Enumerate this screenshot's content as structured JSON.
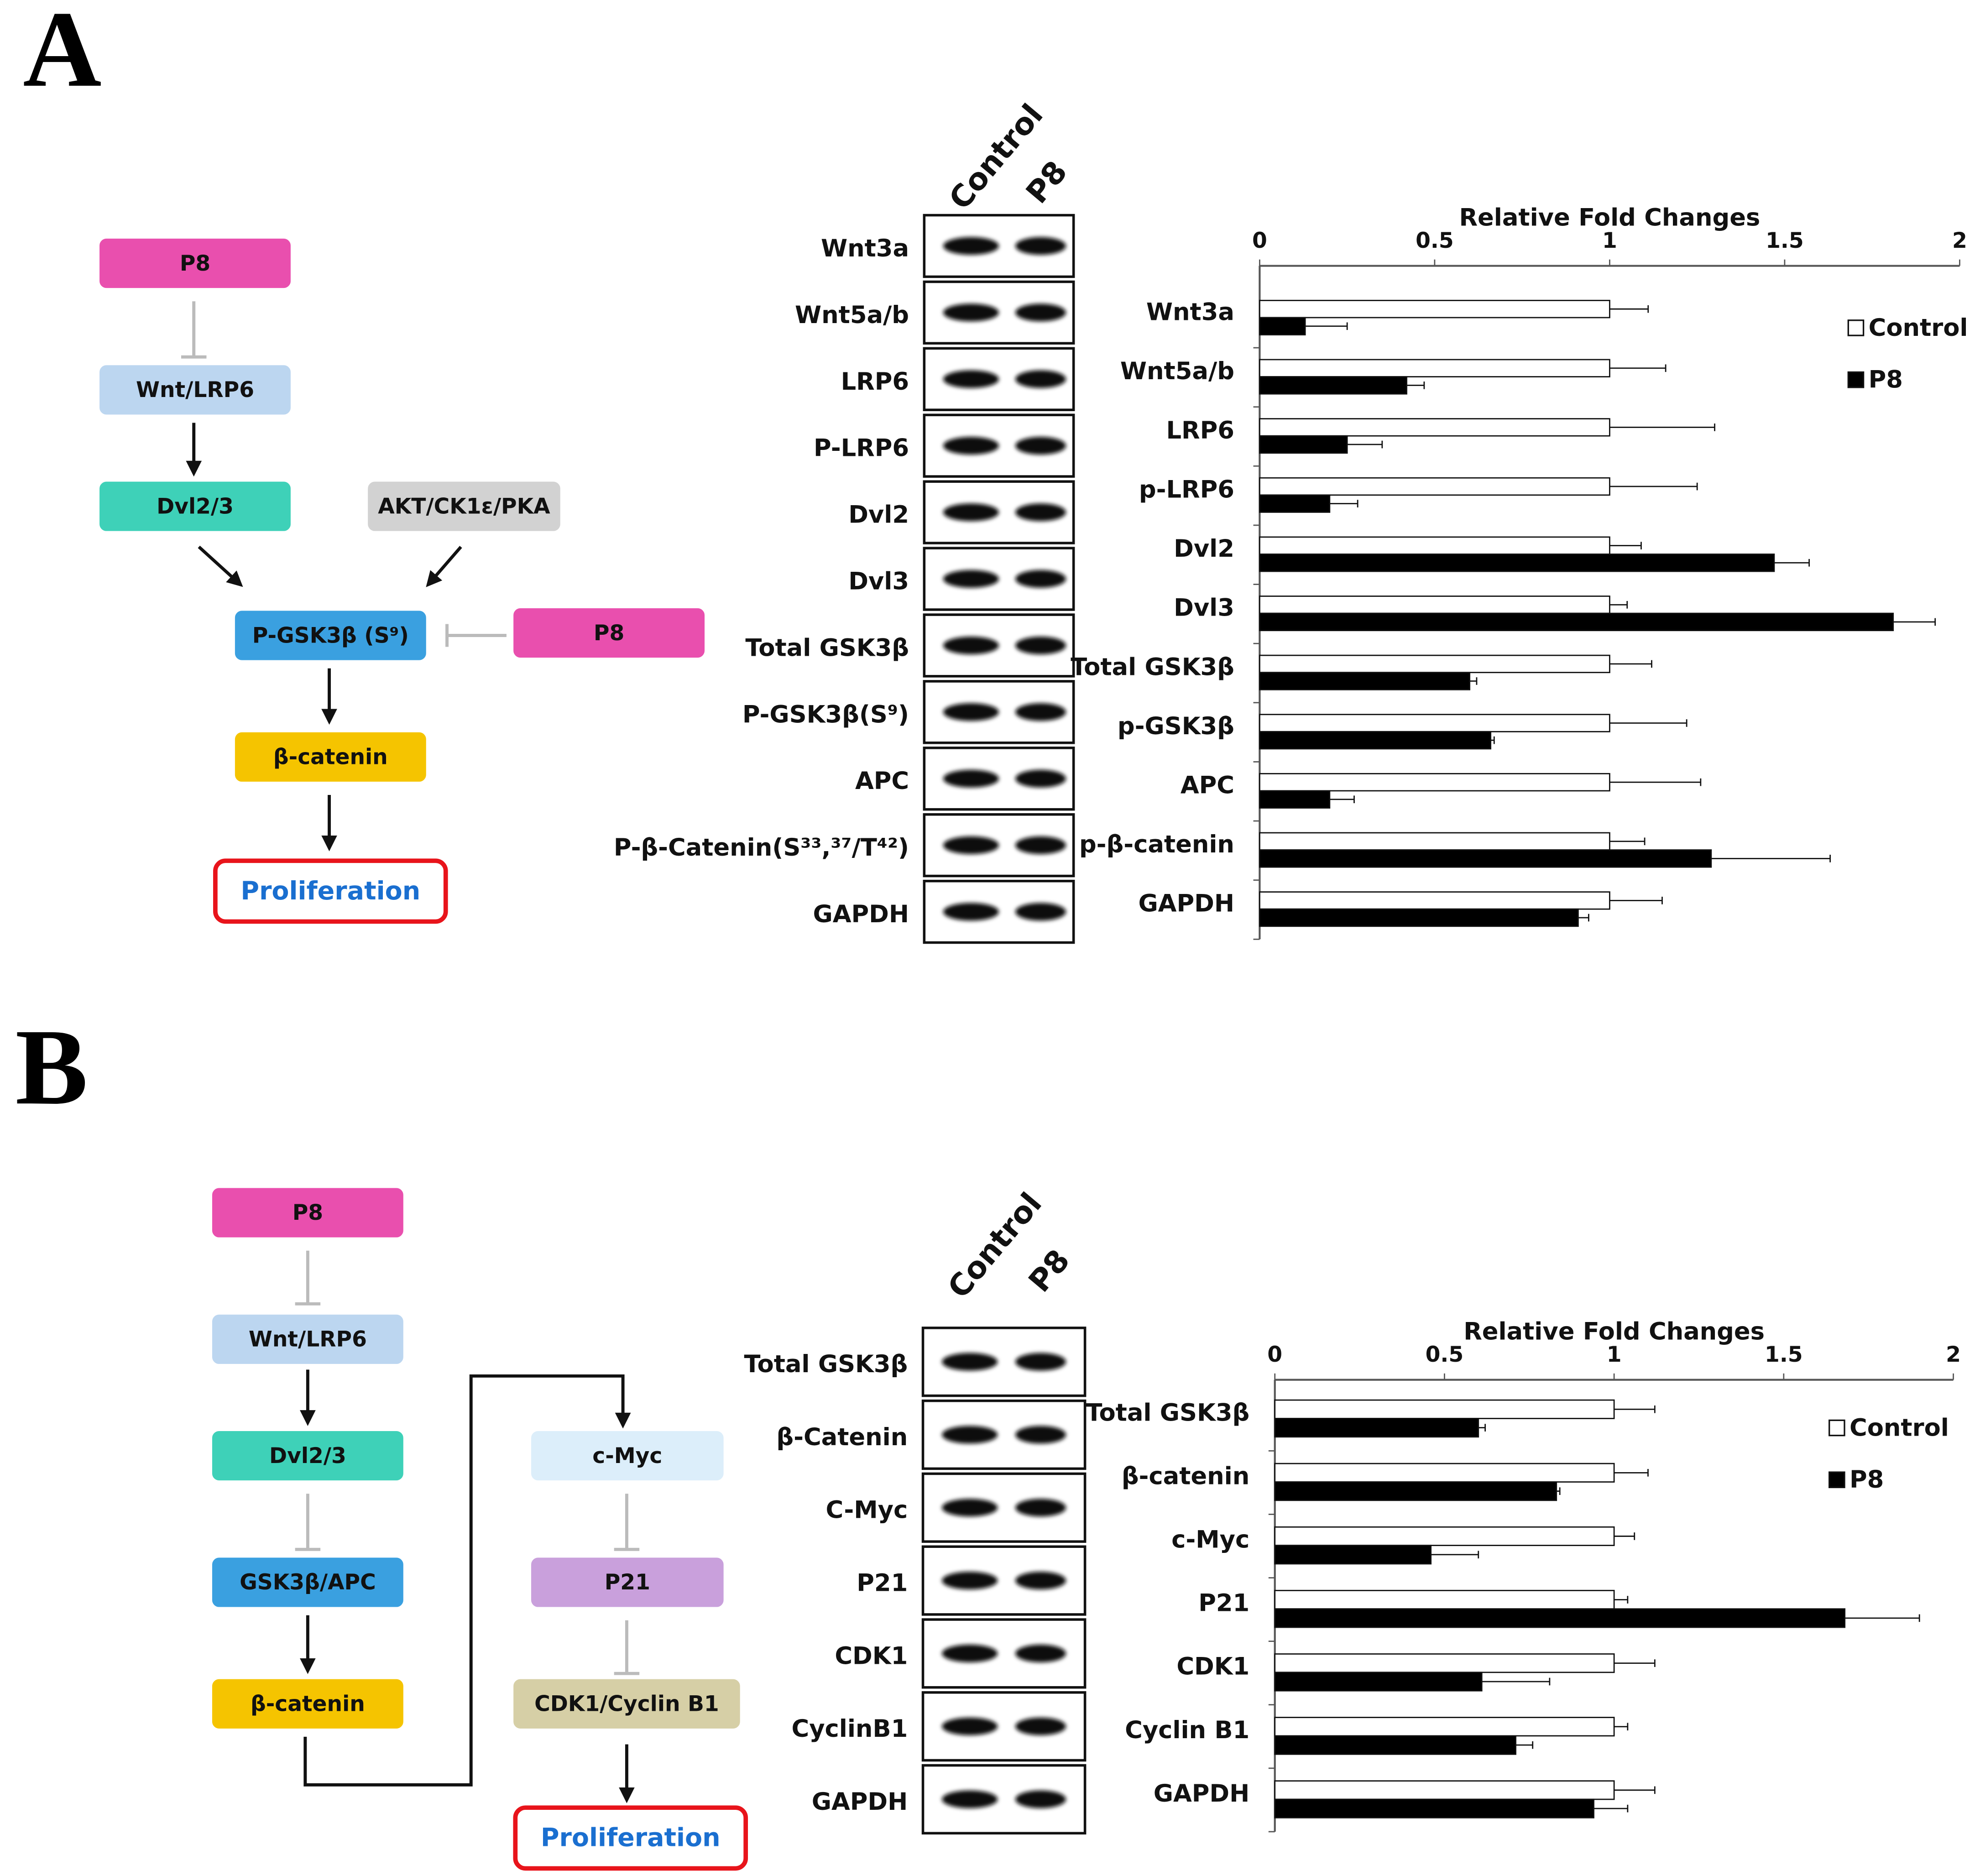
{
  "panels": [
    {
      "label": "A",
      "pathway": [
        "P8",
        "Wnt/LRP6",
        "Dvl2/3",
        "AKT/CK1ε/PKA",
        "P-GSK3β (S⁹)",
        "P8",
        "β-catenin",
        "Proliferation"
      ],
      "blot": {
        "columns": [
          "Control",
          "P8"
        ],
        "rows": [
          "Wnt3a",
          "Wnt5a/b",
          "LRP6",
          "P-LRP6",
          "Dvl2",
          "Dvl3",
          "Total GSK3β",
          "P-GSK3β(S⁹)",
          "APC",
          "P-β-Catenin(S³³,³⁷/T⁴²)",
          "GAPDH"
        ]
      }
    },
    {
      "label": "B",
      "pathway": [
        "P8",
        "Wnt/LRP6",
        "Dvl2/3",
        "GSK3β/APC",
        "β-catenin",
        "c-Myc",
        "P21",
        "CDK1/Cyclin B1",
        "Proliferation"
      ],
      "blot": {
        "columns": [
          "Control",
          "P8"
        ],
        "rows": [
          "Total GSK3β",
          "β-Catenin",
          "C-Myc",
          "P21",
          "CDK1",
          "CyclinB1",
          "GAPDH"
        ]
      }
    }
  ],
  "chart_data": [
    {
      "type": "bar",
      "orientation": "horizontal",
      "title": "Relative Fold Changes",
      "categories": [
        "Wnt3a",
        "Wnt5a/b",
        "LRP6",
        "p-LRP6",
        "Dvl2",
        "Dvl3",
        "Total GSK3β",
        "p-GSK3β",
        "APC",
        "p-β-catenin",
        "GAPDH"
      ],
      "series": [
        {
          "name": "Control",
          "color": "#ffffff",
          "values": [
            1,
            1,
            1,
            1,
            1,
            1,
            1,
            1,
            1,
            1,
            1
          ],
          "errors": [
            0.11,
            0.16,
            0.3,
            0.25,
            0.09,
            0.05,
            0.12,
            0.22,
            0.26,
            0.1,
            0.15
          ]
        },
        {
          "name": "P8",
          "color": "#000000",
          "values": [
            0.13,
            0.42,
            0.25,
            0.2,
            1.47,
            1.81,
            0.6,
            0.66,
            0.2,
            1.29,
            0.91
          ],
          "errors": [
            0.12,
            0.05,
            0.1,
            0.08,
            0.1,
            0.12,
            0.02,
            0.01,
            0.07,
            0.34,
            0.03
          ]
        }
      ],
      "xlim": [
        0,
        2
      ],
      "xticks": [
        0,
        0.5,
        1,
        1.5,
        2
      ],
      "xaxis_side": "top",
      "legend": "upper right"
    },
    {
      "type": "bar",
      "orientation": "horizontal",
      "title": "Relative Fold Changes",
      "categories": [
        "Total GSK3β",
        "β-catenin",
        "c-Myc",
        "P21",
        "CDK1",
        "Cyclin B1",
        "GAPDH"
      ],
      "series": [
        {
          "name": "Control",
          "color": "#ffffff",
          "values": [
            1,
            1,
            1,
            1,
            1,
            1,
            1
          ],
          "errors": [
            0.12,
            0.1,
            0.06,
            0.04,
            0.12,
            0.04,
            0.12
          ]
        },
        {
          "name": "P8",
          "color": "#000000",
          "values": [
            0.6,
            0.83,
            0.46,
            1.68,
            0.61,
            0.71,
            0.94
          ],
          "errors": [
            0.02,
            0.01,
            0.14,
            0.22,
            0.2,
            0.05,
            0.1
          ]
        }
      ],
      "xlim": [
        0,
        2
      ],
      "xticks": [
        0,
        0.5,
        1,
        1.5,
        2
      ],
      "xaxis_side": "top",
      "legend": "upper right"
    }
  ]
}
